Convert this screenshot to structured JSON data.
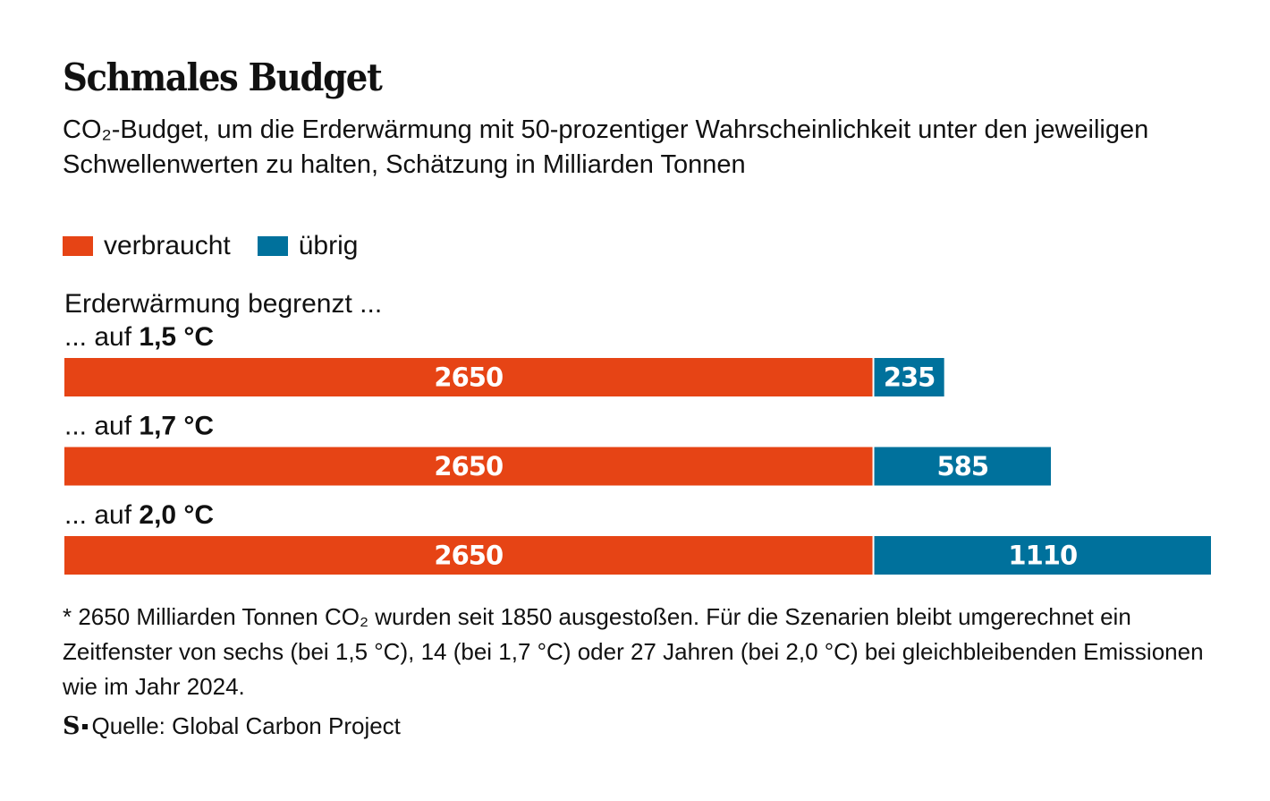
{
  "chart_data": {
    "type": "bar",
    "orientation": "horizontal",
    "stacked": true,
    "title": "Schmales Budget",
    "subtitle": "CO₂-Budget, um die Erderwärmung mit 50-prozentiger Wahrscheinlichkeit unter den jeweiligen Schwellenwerten zu halten, Schätzung in Milliarden Tonnen",
    "group_label": "Erderwärmung begrenzt ...",
    "categories": [
      {
        "prefix": "... auf ",
        "emphasis": "1,5 °C"
      },
      {
        "prefix": "... auf ",
        "emphasis": "1,7 °C"
      },
      {
        "prefix": "... auf ",
        "emphasis": "2,0 °C"
      }
    ],
    "series": [
      {
        "name": "verbraucht",
        "color": "#e64415",
        "values": [
          2650,
          2650,
          2650
        ]
      },
      {
        "name": "übrig",
        "color": "#00719c",
        "values": [
          235,
          585,
          1110
        ]
      }
    ],
    "xlim": [
      0,
      3760
    ],
    "legend_position": "top-left",
    "grid": false
  },
  "footnote": "* 2650 Milliarden Tonnen CO₂ wurden seit 1850 ausgestoßen. Für die Szenarien bleibt umgerechnet ein Zeitfenster von sechs (bei 1,5 °C), 14 (bei 1,7 °C) oder 27 Jahren (bei 2,0 °C) bei gleichbleibenden Emissionen wie im Jahr 2024.",
  "source": {
    "logo": "S",
    "text": "Quelle: Global Carbon Project"
  }
}
